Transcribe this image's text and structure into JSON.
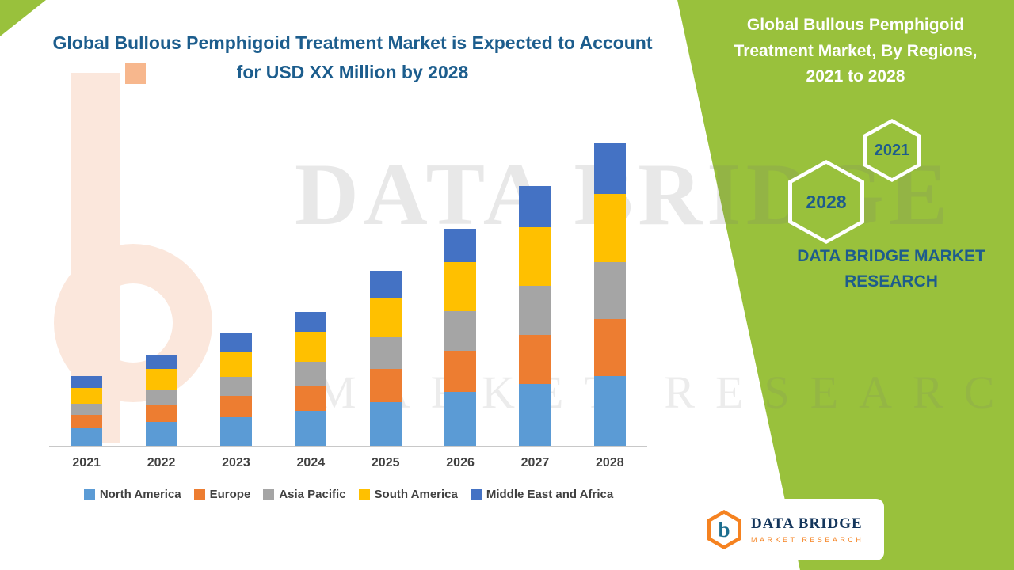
{
  "title": {
    "line1": "Global Bullous Pemphigoid Treatment Market is Expected to Account",
    "line2": "for USD XX Million by 2028"
  },
  "watermark": {
    "line1": "DATA BRIDGE",
    "line2": "MARKET RESEARCH"
  },
  "panel": {
    "title": "Global Bullous Pemphigoid Treatment Market, By Regions, 2021 to 2028",
    "hexagons": [
      "2021",
      "2028"
    ],
    "brand": "DATA BRIDGE MARKET RESEARCH",
    "background_color": "#99C13C",
    "text_color": "#1E5C8C"
  },
  "logo": {
    "mark": "b",
    "name": "DATA BRIDGE",
    "sub": "MARKET RESEARCH"
  },
  "chart_data": {
    "type": "bar",
    "stacked": true,
    "title": "Global Bullous Pemphigoid Treatment Market is Expected to Account for USD XX Million by 2028",
    "xlabel": "",
    "ylabel": "",
    "value_axis_visible": false,
    "grid": false,
    "legend_position": "bottom",
    "categories": [
      "2021",
      "2022",
      "2023",
      "2024",
      "2025",
      "2026",
      "2027",
      "2028"
    ],
    "series": [
      {
        "name": "North America",
        "color": "#5B9BD5",
        "values": [
          22,
          30,
          36,
          44,
          55,
          68,
          78,
          88
        ]
      },
      {
        "name": "Europe",
        "color": "#ED7D31",
        "values": [
          17,
          22,
          27,
          32,
          42,
          52,
          62,
          72
        ]
      },
      {
        "name": "Asia Pacific",
        "color": "#A5A5A5",
        "values": [
          14,
          19,
          24,
          30,
          40,
          50,
          62,
          72
        ]
      },
      {
        "name": "South America",
        "color": "#FFC000",
        "values": [
          20,
          26,
          32,
          38,
          50,
          62,
          74,
          86
        ]
      },
      {
        "name": "Middle East and Africa",
        "color": "#4472C4",
        "values": [
          15,
          18,
          23,
          25,
          34,
          42,
          52,
          64
        ]
      }
    ]
  }
}
